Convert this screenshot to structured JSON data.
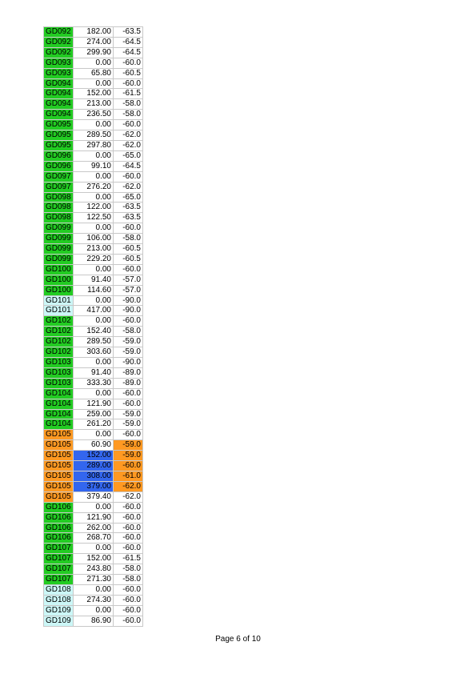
{
  "colors": {
    "green": "#22cc22",
    "cyan": "#ccf7f7",
    "orange": "#ff9922",
    "blue": "#3366ee"
  },
  "rows": [
    {
      "hole": "GD092",
      "depth": "182.00",
      "dip": "-63.5",
      "hole_hl": "green"
    },
    {
      "hole": "GD092",
      "depth": "274.00",
      "dip": "-64.5",
      "hole_hl": "green"
    },
    {
      "hole": "GD092",
      "depth": "299.90",
      "dip": "-64.5",
      "hole_hl": "green"
    },
    {
      "hole": "GD093",
      "depth": "0.00",
      "dip": "-60.0",
      "hole_hl": "green"
    },
    {
      "hole": "GD093",
      "depth": "65.80",
      "dip": "-60.5",
      "hole_hl": "green"
    },
    {
      "hole": "GD094",
      "depth": "0.00",
      "dip": "-60.0",
      "hole_hl": "green"
    },
    {
      "hole": "GD094",
      "depth": "152.00",
      "dip": "-61.5",
      "hole_hl": "green"
    },
    {
      "hole": "GD094",
      "depth": "213.00",
      "dip": "-58.0",
      "hole_hl": "green"
    },
    {
      "hole": "GD094",
      "depth": "236.50",
      "dip": "-58.0",
      "hole_hl": "green"
    },
    {
      "hole": "GD095",
      "depth": "0.00",
      "dip": "-60.0",
      "hole_hl": "green"
    },
    {
      "hole": "GD095",
      "depth": "289.50",
      "dip": "-62.0",
      "hole_hl": "green"
    },
    {
      "hole": "GD095",
      "depth": "297.80",
      "dip": "-62.0",
      "hole_hl": "green"
    },
    {
      "hole": "GD096",
      "depth": "0.00",
      "dip": "-65.0",
      "hole_hl": "green"
    },
    {
      "hole": "GD096",
      "depth": "99.10",
      "dip": "-64.5",
      "hole_hl": "green"
    },
    {
      "hole": "GD097",
      "depth": "0.00",
      "dip": "-60.0",
      "hole_hl": "green"
    },
    {
      "hole": "GD097",
      "depth": "276.20",
      "dip": "-62.0",
      "hole_hl": "green"
    },
    {
      "hole": "GD098",
      "depth": "0.00",
      "dip": "-65.0",
      "hole_hl": "green"
    },
    {
      "hole": "GD098",
      "depth": "122.00",
      "dip": "-63.5",
      "hole_hl": "green"
    },
    {
      "hole": "GD098",
      "depth": "122.50",
      "dip": "-63.5",
      "hole_hl": "green"
    },
    {
      "hole": "GD099",
      "depth": "0.00",
      "dip": "-60.0",
      "hole_hl": "green"
    },
    {
      "hole": "GD099",
      "depth": "106.00",
      "dip": "-58.0",
      "hole_hl": "green"
    },
    {
      "hole": "GD099",
      "depth": "213.00",
      "dip": "-60.5",
      "hole_hl": "green"
    },
    {
      "hole": "GD099",
      "depth": "229.20",
      "dip": "-60.5",
      "hole_hl": "green"
    },
    {
      "hole": "GD100",
      "depth": "0.00",
      "dip": "-60.0",
      "hole_hl": "green"
    },
    {
      "hole": "GD100",
      "depth": "91.40",
      "dip": "-57.0",
      "hole_hl": "green"
    },
    {
      "hole": "GD100",
      "depth": "114.60",
      "dip": "-57.0",
      "hole_hl": "green"
    },
    {
      "hole": "GD101",
      "depth": "0.00",
      "dip": "-90.0",
      "hole_hl": "cyan"
    },
    {
      "hole": "GD101",
      "depth": "417.00",
      "dip": "-90.0",
      "hole_hl": "cyan"
    },
    {
      "hole": "GD102",
      "depth": "0.00",
      "dip": "-60.0",
      "hole_hl": "green"
    },
    {
      "hole": "GD102",
      "depth": "152.40",
      "dip": "-58.0",
      "hole_hl": "green"
    },
    {
      "hole": "GD102",
      "depth": "289.50",
      "dip": "-59.0",
      "hole_hl": "green"
    },
    {
      "hole": "GD102",
      "depth": "303.60",
      "dip": "-59.0",
      "hole_hl": "green"
    },
    {
      "hole": "GD103",
      "depth": "0.00",
      "dip": "-90.0",
      "hole_hl": "green"
    },
    {
      "hole": "GD103",
      "depth": "91.40",
      "dip": "-89.0",
      "hole_hl": "green"
    },
    {
      "hole": "GD103",
      "depth": "333.30",
      "dip": "-89.0",
      "hole_hl": "green"
    },
    {
      "hole": "GD104",
      "depth": "0.00",
      "dip": "-60.0",
      "hole_hl": "green"
    },
    {
      "hole": "GD104",
      "depth": "121.90",
      "dip": "-60.0",
      "hole_hl": "green"
    },
    {
      "hole": "GD104",
      "depth": "259.00",
      "dip": "-59.0",
      "hole_hl": "green"
    },
    {
      "hole": "GD104",
      "depth": "261.20",
      "dip": "-59.0",
      "hole_hl": "green"
    },
    {
      "hole": "GD105",
      "depth": "0.00",
      "dip": "-60.0",
      "hole_hl": "orange"
    },
    {
      "hole": "GD105",
      "depth": "60.90",
      "dip": "-59.0",
      "hole_hl": "orange",
      "dip_hl": "orange"
    },
    {
      "hole": "GD105",
      "depth": "152.00",
      "dip": "-59.0",
      "hole_hl": "orange",
      "depth_hl": "blue",
      "dip_hl": "orange"
    },
    {
      "hole": "GD105",
      "depth": "289.00",
      "dip": "-60.0",
      "hole_hl": "orange",
      "depth_hl": "blue",
      "dip_hl": "orange"
    },
    {
      "hole": "GD105",
      "depth": "308.00",
      "dip": "-61.0",
      "hole_hl": "orange",
      "depth_hl": "blue",
      "dip_hl": "orange"
    },
    {
      "hole": "GD105",
      "depth": "379.00",
      "dip": "-62.0",
      "hole_hl": "orange",
      "depth_hl": "blue",
      "dip_hl": "orange"
    },
    {
      "hole": "GD105",
      "depth": "379.40",
      "dip": "-62.0",
      "hole_hl": "orange"
    },
    {
      "hole": "GD106",
      "depth": "0.00",
      "dip": "-60.0",
      "hole_hl": "green"
    },
    {
      "hole": "GD106",
      "depth": "121.90",
      "dip": "-60.0",
      "hole_hl": "green"
    },
    {
      "hole": "GD106",
      "depth": "262.00",
      "dip": "-60.0",
      "hole_hl": "green"
    },
    {
      "hole": "GD106",
      "depth": "268.70",
      "dip": "-60.0",
      "hole_hl": "green"
    },
    {
      "hole": "GD107",
      "depth": "0.00",
      "dip": "-60.0",
      "hole_hl": "green"
    },
    {
      "hole": "GD107",
      "depth": "152.00",
      "dip": "-61.5",
      "hole_hl": "green"
    },
    {
      "hole": "GD107",
      "depth": "243.80",
      "dip": "-58.0",
      "hole_hl": "green"
    },
    {
      "hole": "GD107",
      "depth": "271.30",
      "dip": "-58.0",
      "hole_hl": "green"
    },
    {
      "hole": "GD108",
      "depth": "0.00",
      "dip": "-60.0",
      "hole_hl": "cyan"
    },
    {
      "hole": "GD108",
      "depth": "274.30",
      "dip": "-60.0",
      "hole_hl": "cyan"
    },
    {
      "hole": "GD109",
      "depth": "0.00",
      "dip": "-60.0",
      "hole_hl": "cyan"
    },
    {
      "hole": "GD109",
      "depth": "86.90",
      "dip": "-60.0",
      "hole_hl": "cyan"
    }
  ],
  "footer": {
    "page_label": "Page 6 of 10"
  }
}
